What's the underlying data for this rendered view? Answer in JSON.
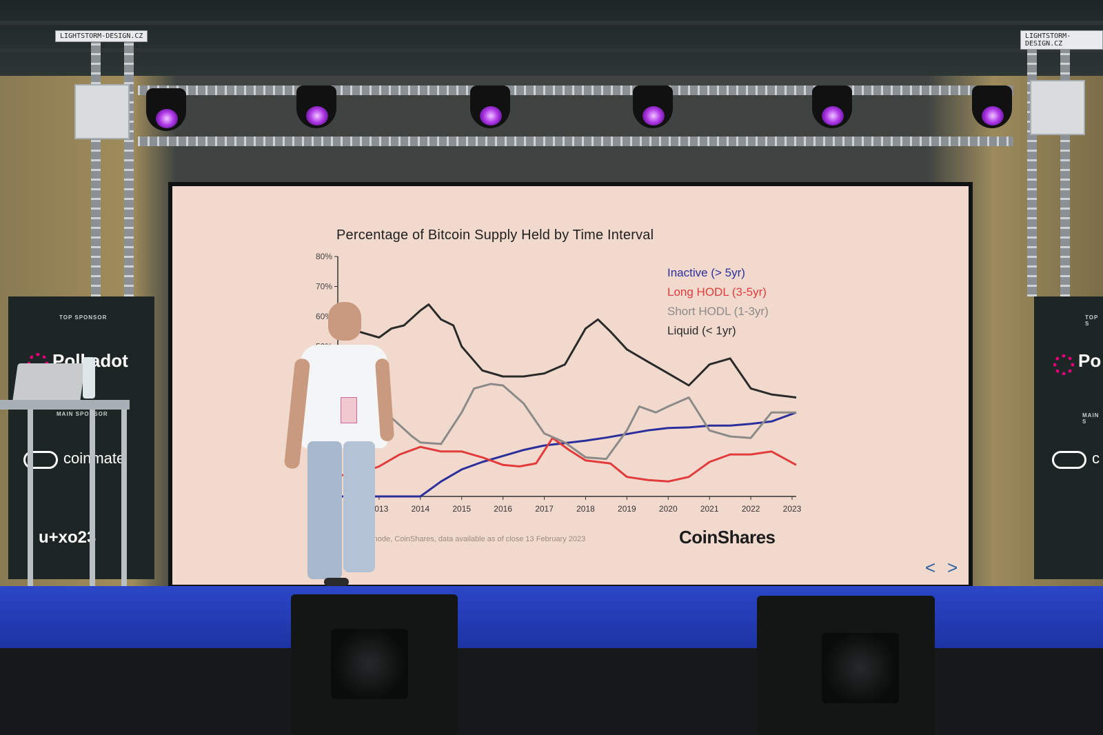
{
  "scene": {
    "rig_sign_left": "LIGHTSTORM-DESIGN.CZ",
    "rig_sign_right": "LIGHTSTORM-DESIGN.CZ"
  },
  "slide": {
    "title": "Percentage of Bitcoin Supply Held by Time Interval",
    "source_note": "s Glassnode, CoinShares, data available as of close 13 February 2023",
    "brand": "CoinShares",
    "nav_prev": "<",
    "nav_next": ">"
  },
  "chart_data": {
    "type": "line",
    "title": "Percentage of Bitcoin Supply Held by Time Interval",
    "xlabel": "",
    "ylabel": "",
    "ylim": [
      0,
      80
    ],
    "xlim": [
      2012.0,
      2023.1
    ],
    "y_ticks": [
      "80%",
      "70%",
      "60%",
      "50%"
    ],
    "x_ticks": [
      "2013",
      "2014",
      "2015",
      "2016",
      "2017",
      "2018",
      "2019",
      "2020",
      "2021",
      "2022",
      "2023"
    ],
    "legend_position": "top-right",
    "grid": false,
    "series": [
      {
        "name": "Inactive (> 5yr)",
        "color": "#2b2f9c",
        "x": [
          2012.0,
          2013.0,
          2014.0,
          2014.5,
          2015.0,
          2015.5,
          2016.0,
          2016.5,
          2017.0,
          2017.5,
          2018.0,
          2018.5,
          2019.0,
          2019.5,
          2020.0,
          2020.5,
          2021.0,
          2021.5,
          2022.0,
          2022.5,
          2023.1
        ],
        "y": [
          0,
          0,
          0,
          5,
          9,
          11.5,
          13.5,
          15.5,
          17,
          17.8,
          18.6,
          19.6,
          20.8,
          22,
          22.8,
          23,
          23.6,
          23.6,
          24.2,
          25,
          28
        ]
      },
      {
        "name": "Long HODL (3-5yr)",
        "color": "#e23b3b",
        "x": [
          2012.0,
          2012.5,
          2013.0,
          2013.5,
          2014.0,
          2014.5,
          2015.0,
          2015.5,
          2016.0,
          2016.4,
          2016.8,
          2017.2,
          2017.6,
          2018.0,
          2018.6,
          2019.0,
          2019.5,
          2020.0,
          2020.5,
          2021.0,
          2021.5,
          2022.0,
          2022.5,
          2023.1
        ],
        "y": [
          7,
          7.5,
          10,
          14,
          16.5,
          15,
          15,
          13,
          10.5,
          10,
          11,
          19.5,
          15.5,
          12,
          11,
          6.5,
          5.5,
          5,
          6.5,
          11.5,
          14,
          14,
          15,
          10.5
        ]
      },
      {
        "name": "Short HODL (1-3yr)",
        "color": "#8c8a88",
        "x": [
          2012.0,
          2012.5,
          2013.0,
          2013.4,
          2013.8,
          2014.0,
          2014.5,
          2015.0,
          2015.3,
          2015.7,
          2016.0,
          2016.5,
          2017.0,
          2017.5,
          2018.0,
          2018.5,
          2019.0,
          2019.3,
          2019.7,
          2020.0,
          2020.5,
          2021.0,
          2021.5,
          2022.0,
          2022.5,
          2023.1
        ],
        "y": [
          32,
          31,
          30,
          25,
          20,
          18,
          17.5,
          28,
          36,
          37.5,
          37,
          31,
          21,
          18,
          13,
          12.5,
          22,
          30,
          28,
          30,
          33,
          22,
          20,
          19.5,
          28,
          28
        ]
      },
      {
        "name": "Liquid (< 1yr)",
        "color": "#2a2a2a",
        "x": [
          2012.0,
          2012.5,
          2013.0,
          2013.3,
          2013.6,
          2014.0,
          2014.2,
          2014.5,
          2014.8,
          2015.0,
          2015.5,
          2016.0,
          2016.5,
          2017.0,
          2017.5,
          2018.0,
          2018.3,
          2018.6,
          2019.0,
          2019.5,
          2020.0,
          2020.5,
          2021.0,
          2021.5,
          2022.0,
          2022.5,
          2023.1
        ],
        "y": [
          60,
          55,
          53,
          56,
          57,
          62,
          64,
          59,
          57,
          50,
          42,
          40,
          40,
          41,
          44,
          56,
          59,
          55,
          49,
          45,
          41,
          37,
          44,
          46,
          36,
          34,
          33
        ]
      }
    ]
  },
  "banners": {
    "left": {
      "top_caption": "TOP SPONSOR",
      "brand_top": "Polkadot",
      "mid_caption": "MAIN SPONSOR",
      "brand_mid": "coinmate",
      "event": "u+xo23"
    },
    "right": {
      "top_caption": "TOP S",
      "brand_top": "Po",
      "mid_caption": "MAIN S",
      "brand_mid": "c"
    }
  },
  "colors": {
    "screen_bg": "#f1d9cd",
    "stage_blue": "#2b46c8",
    "light_purple": "#b23bea"
  }
}
